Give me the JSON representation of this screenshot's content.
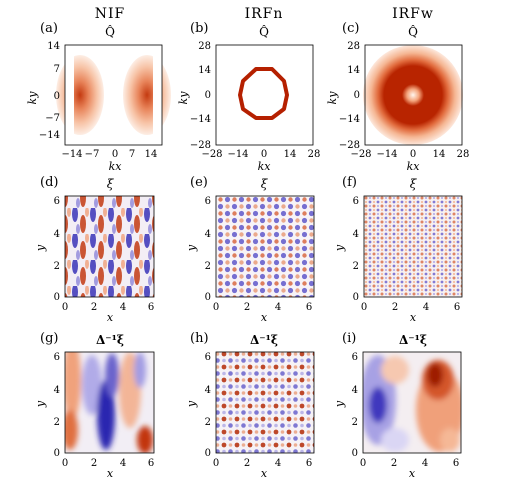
{
  "figure": {
    "columns": [
      {
        "title": "NIF"
      },
      {
        "title": "IRFn"
      },
      {
        "title": "IRFw"
      }
    ],
    "rows": [
      {
        "quantity": "Q̂"
      },
      {
        "quantity": "ξ"
      },
      {
        "quantity": "Δ⁻¹ξ"
      }
    ],
    "panels": [
      {
        "label": "(a)",
        "xlabel": "kx",
        "ylabel": "ky",
        "xticks": [
          "−14",
          "−7",
          "0",
          "7",
          "14"
        ],
        "yticks": [
          "14",
          "7",
          "0",
          "−7",
          "−14"
        ]
      },
      {
        "label": "(b)",
        "xlabel": "kx",
        "ylabel": "ky",
        "xticks": [
          "−28",
          "−14",
          "0",
          "14",
          "28"
        ],
        "yticks": [
          "28",
          "14",
          "0",
          "−14",
          "−28"
        ]
      },
      {
        "label": "(c)",
        "xlabel": "kx",
        "ylabel": "ky",
        "xticks": [
          "−28",
          "−14",
          "0",
          "14",
          "28"
        ],
        "yticks": [
          "28",
          "14",
          "0",
          "−14",
          "−28"
        ]
      },
      {
        "label": "(d)",
        "xlabel": "x",
        "ylabel": "y",
        "xticks": [
          "0",
          "2",
          "4",
          "6"
        ],
        "yticks": [
          "6",
          "4",
          "2",
          "0"
        ]
      },
      {
        "label": "(e)",
        "xlabel": "x",
        "ylabel": "y",
        "xticks": [
          "0",
          "2",
          "4",
          "6"
        ],
        "yticks": [
          "6",
          "4",
          "2",
          "0"
        ]
      },
      {
        "label": "(f)",
        "xlabel": "x",
        "ylabel": "y",
        "xticks": [
          "0",
          "2",
          "4",
          "6"
        ],
        "yticks": [
          "6",
          "4",
          "2",
          "0"
        ]
      },
      {
        "label": "(g)",
        "xlabel": "x",
        "ylabel": "y",
        "xticks": [
          "0",
          "2",
          "4",
          "6"
        ],
        "yticks": [
          "6",
          "4",
          "2",
          "0"
        ]
      },
      {
        "label": "(h)",
        "xlabel": "x",
        "ylabel": "y",
        "xticks": [
          "0",
          "2",
          "4",
          "6"
        ],
        "yticks": [
          "6",
          "4",
          "2",
          "0"
        ]
      },
      {
        "label": "(i)",
        "xlabel": "x",
        "ylabel": "y",
        "xticks": [
          "0",
          "2",
          "4",
          "6"
        ],
        "yticks": [
          "6",
          "4",
          "2",
          "0"
        ]
      }
    ],
    "colors": {
      "positive_strong": "#b22000",
      "positive_mid": "#e8845a",
      "positive_light": "#fbe0cf",
      "negative_strong": "#1a1aa8",
      "negative_light": "#d8d6f3"
    }
  }
}
